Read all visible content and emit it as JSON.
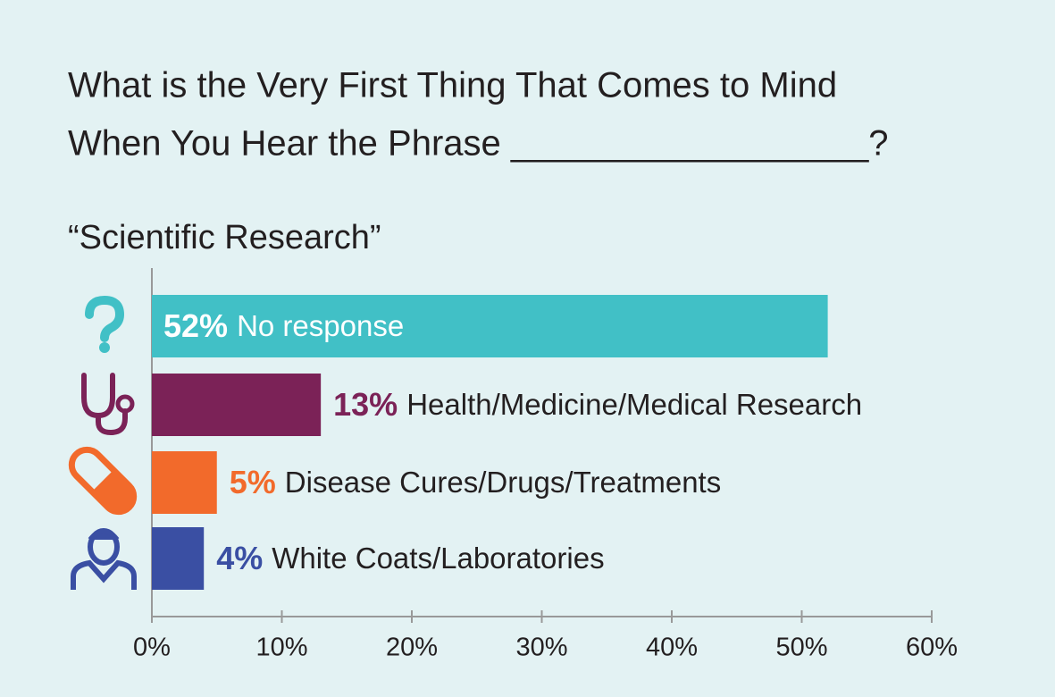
{
  "chart_data": {
    "type": "bar",
    "orientation": "horizontal",
    "title": [
      "What is the Very First Thing That Comes to Mind",
      "When You Hear the Phrase __________________?"
    ],
    "subtitle": "“Scientific Research”",
    "categories": [
      "No response",
      "Health/Medicine/Medical Research",
      "Disease Cures/Drugs/Treatments",
      "White Coats/Laboratories"
    ],
    "values": [
      52,
      13,
      5,
      4
    ],
    "value_labels": [
      "52%",
      "13%",
      "5%",
      "4%"
    ],
    "colors": [
      "#41c0c6",
      "#7b2257",
      "#f26a2b",
      "#3a4fa3"
    ],
    "xlim": [
      0,
      60
    ],
    "xticks": [
      {
        "value": 0,
        "label": "0%"
      },
      {
        "value": 10,
        "label": "10%"
      },
      {
        "value": 20,
        "label": "20%"
      },
      {
        "value": 30,
        "label": "30%"
      },
      {
        "value": 40,
        "label": "40%"
      },
      {
        "value": 50,
        "label": "50%"
      },
      {
        "value": 60,
        "label": "60%"
      }
    ]
  }
}
